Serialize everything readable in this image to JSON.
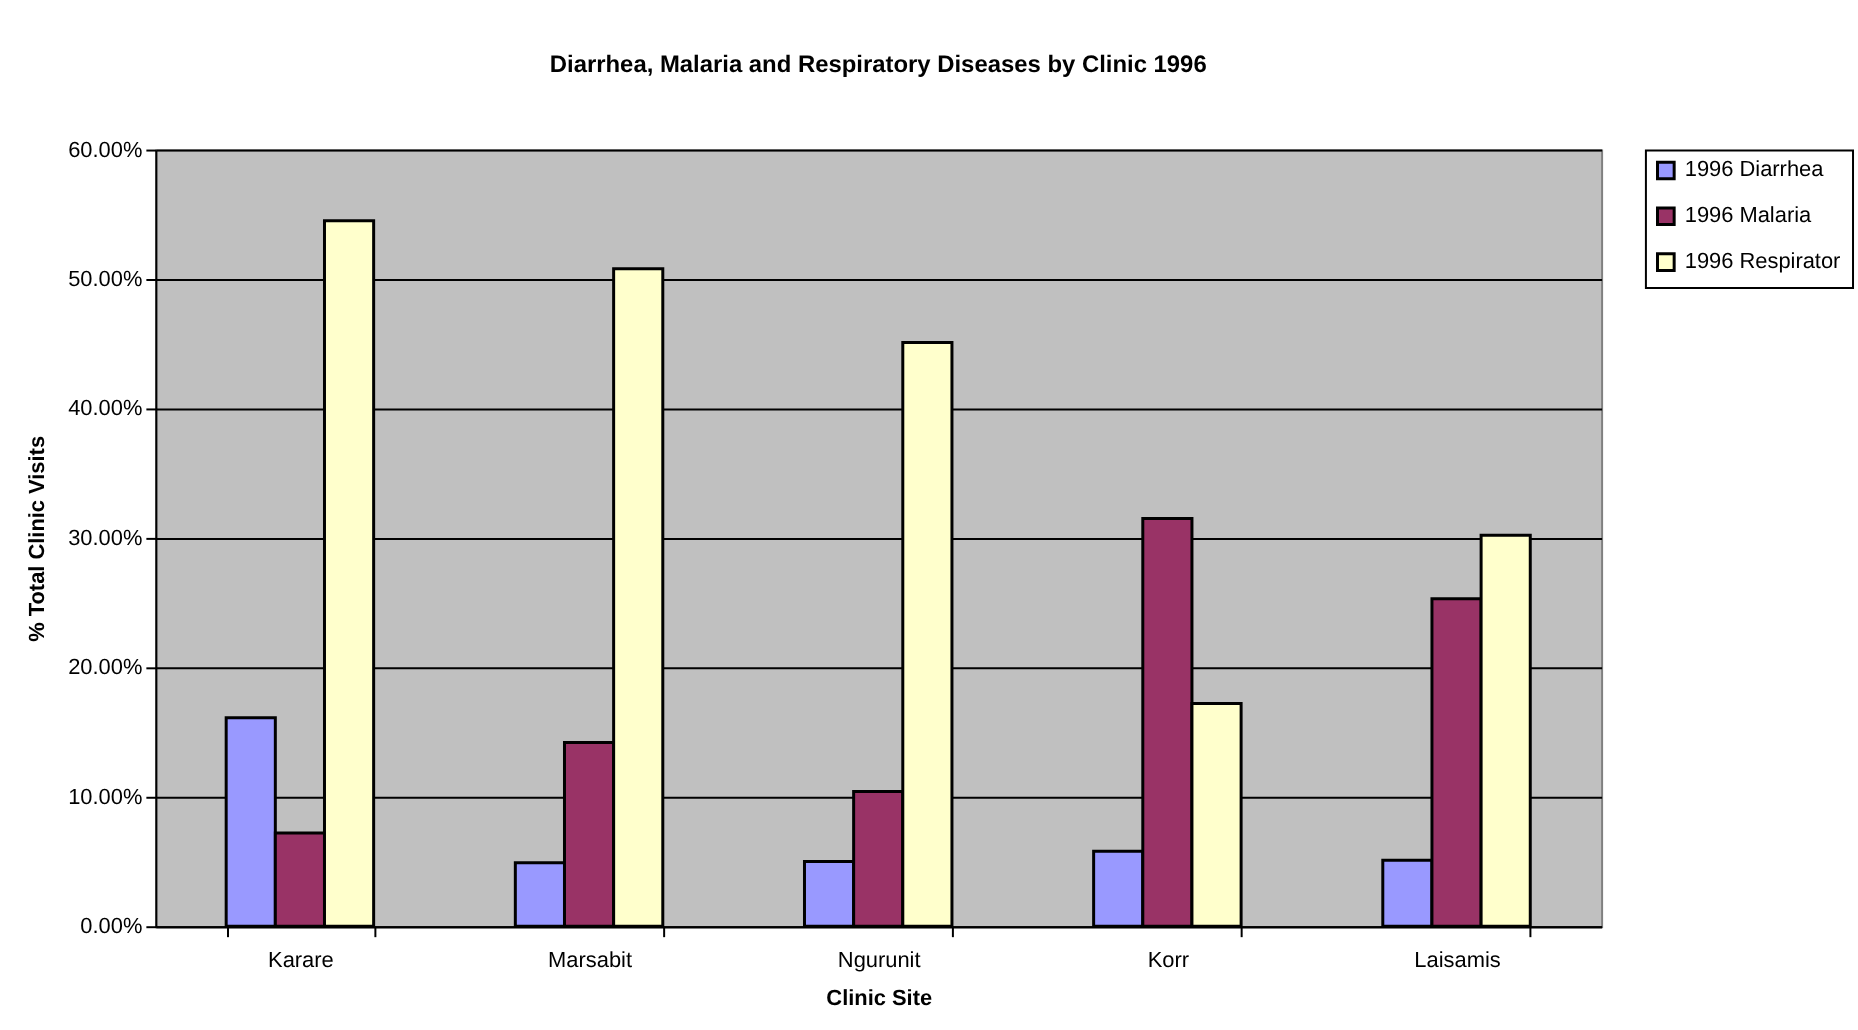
{
  "chart_data": {
    "type": "bar",
    "title": "Diarrhea, Malaria and Respiratory Diseases by Clinic 1996",
    "xlabel": "Clinic Site",
    "ylabel": "% Total Clinic Visits",
    "categories": [
      "Karare",
      "Marsabit",
      "Ngurunit",
      "Korr",
      "Laisamis"
    ],
    "series": [
      {
        "name": "1996 Diarrhea",
        "color": "#9999ff",
        "values": [
          16.1,
          4.9,
          5.0,
          5.8,
          5.1
        ]
      },
      {
        "name": "1996 Malaria",
        "color": "#993366",
        "values": [
          7.2,
          14.2,
          10.4,
          31.5,
          25.3
        ]
      },
      {
        "name": "1996 Respirator",
        "color": "#ffffcc",
        "values": [
          54.5,
          50.8,
          45.1,
          17.2,
          30.2
        ]
      }
    ],
    "ylim": [
      0,
      60
    ],
    "yticks": [
      {
        "value": 0,
        "label": "0.00%"
      },
      {
        "value": 10,
        "label": "10.00%"
      },
      {
        "value": 20,
        "label": "20.00%"
      },
      {
        "value": 30,
        "label": "30.00%"
      },
      {
        "value": 40,
        "label": "40.00%"
      },
      {
        "value": 50,
        "label": "50.00%"
      },
      {
        "value": 60,
        "label": "60.00%"
      }
    ],
    "grid": "y",
    "legend": "right"
  }
}
